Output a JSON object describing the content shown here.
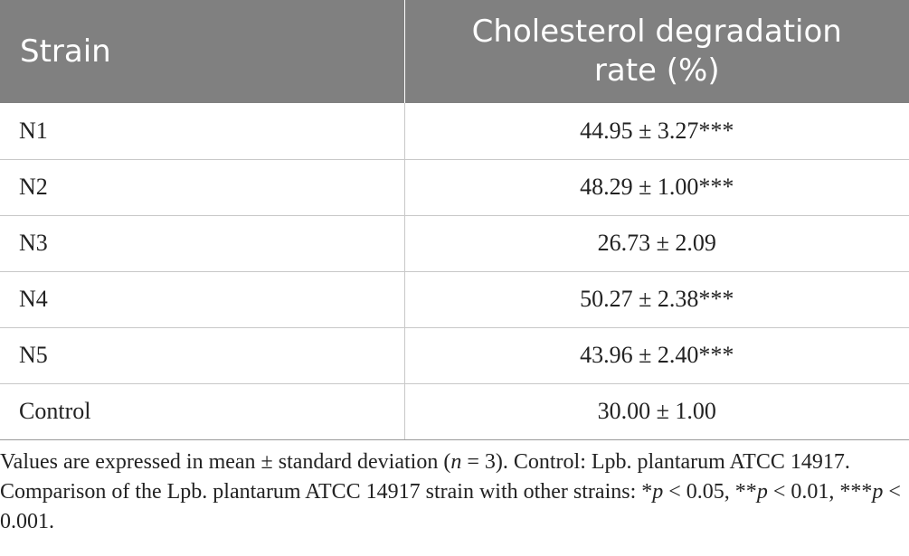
{
  "table": {
    "headers": {
      "strain": "Strain",
      "rate": "Cholesterol degradation rate (%)"
    },
    "rows": [
      {
        "strain": "N1",
        "value": "44.95 ± 3.27***"
      },
      {
        "strain": "N2",
        "value": "48.29 ± 1.00***"
      },
      {
        "strain": "N3",
        "value": "26.73 ± 2.09"
      },
      {
        "strain": "N4",
        "value": "50.27 ± 2.38***"
      },
      {
        "strain": "N5",
        "value": "43.96 ± 2.40***"
      },
      {
        "strain": "Control",
        "value": "30.00 ± 1.00"
      }
    ]
  },
  "footnote": {
    "part1": "Values are expressed in mean ± standard deviation (",
    "n": "n",
    "part2": " = 3). Control: Lpb. plantarum ATCC 14917. Comparison of the Lpb. plantarum ATCC 14917 strain with other strains: *",
    "p1": "p",
    "part3": " < 0.05, **",
    "p2": "p",
    "part4": " < 0.01, ***",
    "p3": "p",
    "part5": " < 0.001."
  },
  "colors": {
    "header_bg": "#808080",
    "header_text": "#ffffff",
    "grid_line": "#c8c8c8"
  }
}
